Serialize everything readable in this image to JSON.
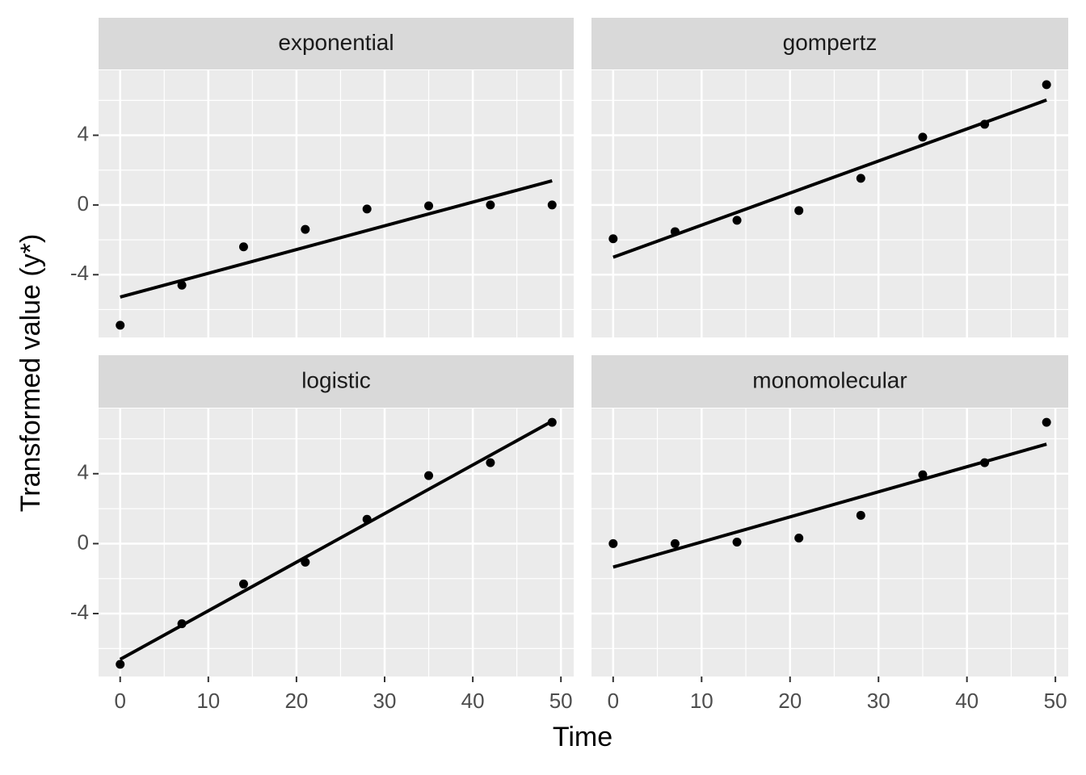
{
  "chart_data": {
    "type": "scatter",
    "x_label": "Time",
    "y_label": "Transformed value (y*)",
    "xlim": [
      -2.45,
      51.45
    ],
    "ylim": [
      -7.6,
      7.73
    ],
    "xticks": [
      0,
      10,
      20,
      30,
      40,
      50
    ],
    "yticks": [
      -4,
      0,
      4
    ],
    "x_minor_grid": [
      5,
      15,
      25,
      35,
      45
    ],
    "y_minor_grid": [
      -6,
      -2,
      2,
      6
    ],
    "grid": true,
    "point_color": "#000000",
    "line_color": "#000000",
    "x": [
      0,
      7,
      14,
      21,
      28,
      35,
      42,
      49
    ],
    "facets": [
      {
        "title": "exponential",
        "values": [
          -6.9,
          -4.6,
          -2.4,
          -1.4,
          -0.23,
          -0.05,
          0,
          0
        ],
        "fit": {
          "x": [
            0,
            49
          ],
          "values": [
            -5.28,
            1.39
          ]
        }
      },
      {
        "title": "gompertz",
        "values": [
          -1.94,
          -1.53,
          -0.88,
          -0.32,
          1.53,
          3.89,
          4.63,
          6.9
        ],
        "fit": {
          "x": [
            0,
            49
          ],
          "values": [
            -3.0,
            6.02
          ]
        }
      },
      {
        "title": "logistic",
        "values": [
          -6.9,
          -4.58,
          -2.31,
          -1.06,
          1.39,
          3.89,
          4.63,
          6.94
        ],
        "fit": {
          "x": [
            0,
            49
          ],
          "values": [
            -6.62,
            7.0
          ]
        }
      },
      {
        "title": "monomolecular",
        "values": [
          0,
          0,
          0.09,
          0.32,
          1.62,
          3.94,
          4.63,
          6.94
        ],
        "fit": {
          "x": [
            0,
            49
          ],
          "values": [
            -1.34,
            5.69
          ]
        }
      }
    ]
  }
}
